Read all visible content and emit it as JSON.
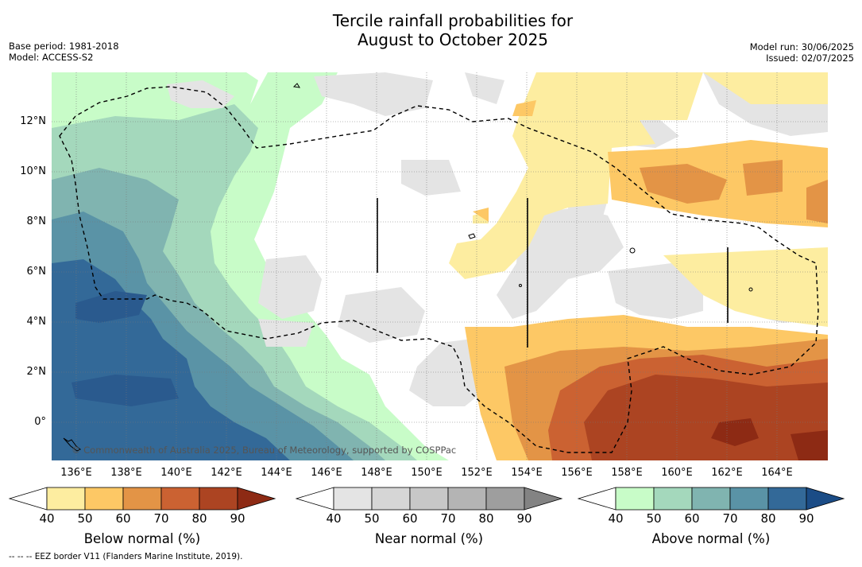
{
  "title_line1": "Tercile rainfall probabilities for",
  "title_line2": "August to October 2025",
  "base_period": "Base period: 1981-2018",
  "model": "Model: ACCESS-S2",
  "model_run": "Model run: 30/06/2025",
  "issued": "Issued: 02/07/2025",
  "credit": "© Commonwealth of Australia 2025, Bureau of Meteorology, supported by COSPPac",
  "lat_labels": [
    "12°N",
    "10°N",
    "8°N",
    "6°N",
    "4°N",
    "2°N",
    "0°"
  ],
  "lon_labels": [
    "136°E",
    "138°E",
    "140°E",
    "142°E",
    "144°E",
    "146°E",
    "148°E",
    "150°E",
    "152°E",
    "154°E",
    "156°E",
    "158°E",
    "160°E",
    "162°E",
    "164°E"
  ],
  "colorbars": [
    {
      "title": "Below normal (%)",
      "ticks": [
        "40",
        "50",
        "60",
        "70",
        "80",
        "90"
      ],
      "colors": [
        "#ffffff",
        "#fdeda0",
        "#fdc865",
        "#e39446",
        "#cb6232",
        "#ac4422",
        "#8d2a14"
      ]
    },
    {
      "title": "Near normal (%)",
      "ticks": [
        "40",
        "50",
        "60",
        "70",
        "80",
        "90"
      ],
      "colors": [
        "#ffffff",
        "#e4e4e4",
        "#d6d6d6",
        "#c7c7c7",
        "#b4b4b4",
        "#9e9e9e",
        "#838383"
      ]
    },
    {
      "title": "Above normal (%)",
      "ticks": [
        "40",
        "50",
        "60",
        "70",
        "80",
        "90"
      ],
      "colors": [
        "#ffffff",
        "#c8fcc8",
        "#a4d8bc",
        "#80b4b0",
        "#5a93a6",
        "#336998",
        "#1b4c86"
      ]
    }
  ],
  "eez_note": "--  --  -- EEZ border V11 (Flanders Marine Institute, 2019)."
}
